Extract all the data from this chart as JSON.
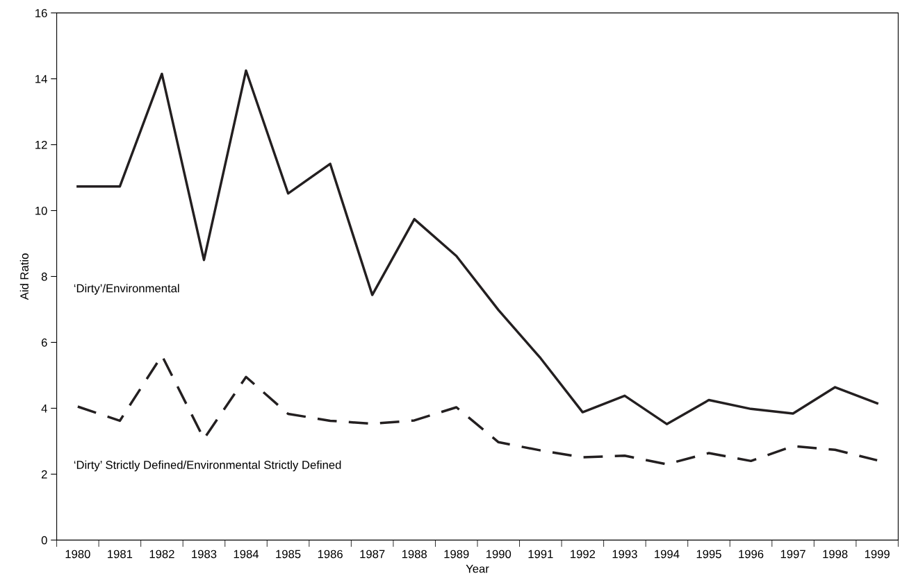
{
  "chart_data": {
    "type": "line",
    "xlabel": "Year",
    "ylabel": "Aid Ratio",
    "categories": [
      "1980",
      "1981",
      "1982",
      "1983",
      "1984",
      "1985",
      "1986",
      "1987",
      "1988",
      "1989",
      "1990",
      "1991",
      "1992",
      "1993",
      "1994",
      "1995",
      "1996",
      "1997",
      "1998",
      "1999"
    ],
    "series": [
      {
        "name": "‘Dirty’/Environmental",
        "color": "#231f20",
        "line_style": "solid",
        "values": [
          10.73,
          10.73,
          14.15,
          8.5,
          14.25,
          10.52,
          11.42,
          7.44,
          9.74,
          8.62,
          6.98,
          5.52,
          3.88,
          4.38,
          3.52,
          4.25,
          3.98,
          3.84,
          4.64,
          4.15
        ]
      },
      {
        "name": "‘Dirty’ Strictly Defined/Environmental Strictly Defined",
        "color": "#231f20",
        "line_style": "dashed",
        "values": [
          4.05,
          3.62,
          5.6,
          3.07,
          4.95,
          3.83,
          3.62,
          3.53,
          3.63,
          4.03,
          2.97,
          2.72,
          2.51,
          2.56,
          2.3,
          2.64,
          2.4,
          2.85,
          2.74,
          2.42
        ]
      }
    ],
    "ylim": [
      0,
      16
    ],
    "yticks": [
      0,
      2,
      4,
      6,
      8,
      10,
      12,
      14,
      16
    ],
    "grid": false,
    "legend": false,
    "marker": "none"
  }
}
